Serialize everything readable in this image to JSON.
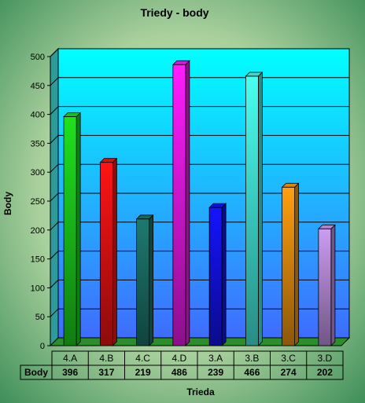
{
  "chart_data": {
    "type": "bar",
    "title": "Triedy - body",
    "xlabel": "Trieda",
    "ylabel": "Body",
    "categories": [
      "4.A",
      "4.B",
      "4.C",
      "4.D",
      "3.A",
      "3.B",
      "3.C",
      "3.D"
    ],
    "values": [
      396,
      317,
      219,
      486,
      239,
      466,
      274,
      202
    ],
    "ylim": [
      0,
      500
    ],
    "yticks": [
      "0",
      "50",
      "100",
      "150",
      "200",
      "250",
      "300",
      "350",
      "400",
      "450",
      "500"
    ],
    "grid": true,
    "data_table": {
      "row_label": "Body"
    },
    "colors": {
      "bars": [
        "#1fe11f",
        "#ff1414",
        "#1d7a70",
        "#ff1cff",
        "#1414ff",
        "#49fff0",
        "#ff9f10",
        "#cc9cf2"
      ],
      "plot_top": "#00ffff",
      "plot_bottom": "#3f6cff",
      "background_center": "#c6e4b8",
      "background_edge": "#3f8f5a"
    }
  }
}
